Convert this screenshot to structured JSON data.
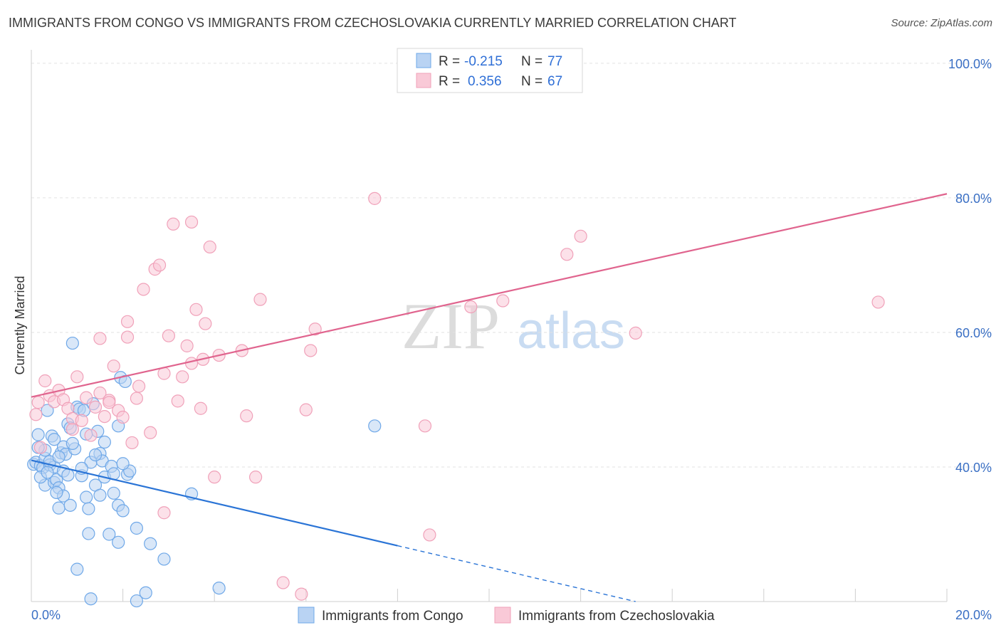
{
  "chart_data": {
    "type": "scatter",
    "title": "IMMIGRANTS FROM CONGO VS IMMIGRANTS FROM CZECHOSLOVAKIA CURRENTLY MARRIED CORRELATION CHART",
    "source": "Source: ZipAtlas.com",
    "ylabel": "Currently Married",
    "xlabel": "",
    "xlim": [
      0,
      20
    ],
    "ylim": [
      20,
      102
    ],
    "x_tick_labels": [
      "0.0%",
      "20.0%"
    ],
    "y_ticks": [
      40,
      60,
      80,
      100
    ],
    "y_tick_labels": [
      "40.0%",
      "60.0%",
      "80.0%",
      "100.0%"
    ],
    "grid": true,
    "watermark": {
      "zip": "ZIP",
      "atlas": "atlas"
    },
    "legend": {
      "position": "top-center",
      "rows": [
        {
          "r_label": "R =",
          "r_value": "-0.215",
          "n_label": "N =",
          "n_value": "77"
        },
        {
          "r_label": "R =",
          "r_value": "0.356",
          "n_label": "N =",
          "n_value": "67"
        }
      ]
    },
    "series": [
      {
        "name": "Immigrants from Congo",
        "color": "#6fa8e8",
        "fill": "#b9d3f3",
        "line_color": "#2a74d6",
        "trend": {
          "x0": 0.0,
          "y0": 41.0,
          "x1": 8.0,
          "y1": 28.3,
          "dash_to_x": 13.2,
          "dash_to_y": 20.0
        },
        "points": [
          [
            0.05,
            40.4
          ],
          [
            0.1,
            40.7
          ],
          [
            0.15,
            44.8
          ],
          [
            0.2,
            40.2
          ],
          [
            0.25,
            39.9
          ],
          [
            0.3,
            37.3
          ],
          [
            0.3,
            41.3
          ],
          [
            0.35,
            48.4
          ],
          [
            0.4,
            40.3
          ],
          [
            0.45,
            44.6
          ],
          [
            0.5,
            40.0
          ],
          [
            0.5,
            37.7
          ],
          [
            0.55,
            38.1
          ],
          [
            0.6,
            36.9
          ],
          [
            0.6,
            33.9
          ],
          [
            0.65,
            42.1
          ],
          [
            0.7,
            43.0
          ],
          [
            0.7,
            35.7
          ],
          [
            0.75,
            41.9
          ],
          [
            0.8,
            46.4
          ],
          [
            0.85,
            45.8
          ],
          [
            0.85,
            34.3
          ],
          [
            0.9,
            58.4
          ],
          [
            0.95,
            42.7
          ],
          [
            1.0,
            48.9
          ],
          [
            1.05,
            48.6
          ],
          [
            1.1,
            38.7
          ],
          [
            1.15,
            48.4
          ],
          [
            1.2,
            35.5
          ],
          [
            1.25,
            33.8
          ],
          [
            1.25,
            30.1
          ],
          [
            1.3,
            40.7
          ],
          [
            1.35,
            49.4
          ],
          [
            1.4,
            37.3
          ],
          [
            1.45,
            45.3
          ],
          [
            1.5,
            42.0
          ],
          [
            1.5,
            35.8
          ],
          [
            1.55,
            40.9
          ],
          [
            1.6,
            43.7
          ],
          [
            1.7,
            30.0
          ],
          [
            1.75,
            40.1
          ],
          [
            1.8,
            36.1
          ],
          [
            1.9,
            46.1
          ],
          [
            1.9,
            34.3
          ],
          [
            1.95,
            53.3
          ],
          [
            2.0,
            33.5
          ],
          [
            2.05,
            52.7
          ],
          [
            2.1,
            38.9
          ],
          [
            2.15,
            39.4
          ],
          [
            2.3,
            30.9
          ],
          [
            2.3,
            20.1
          ],
          [
            2.5,
            21.3
          ],
          [
            2.6,
            28.6
          ],
          [
            2.9,
            26.3
          ],
          [
            3.5,
            36.0
          ],
          [
            4.1,
            22.0
          ],
          [
            7.5,
            46.1
          ],
          [
            1.0,
            24.8
          ],
          [
            1.3,
            20.4
          ],
          [
            1.9,
            28.8
          ],
          [
            0.2,
            38.5
          ],
          [
            0.4,
            40.8
          ],
          [
            0.6,
            41.5
          ],
          [
            0.9,
            43.5
          ],
          [
            1.1,
            39.8
          ],
          [
            0.3,
            42.5
          ],
          [
            0.5,
            44.1
          ],
          [
            0.7,
            39.4
          ],
          [
            1.2,
            44.9
          ],
          [
            1.6,
            38.5
          ],
          [
            0.15,
            42.9
          ],
          [
            0.55,
            36.2
          ],
          [
            0.8,
            38.8
          ],
          [
            1.4,
            41.8
          ],
          [
            1.8,
            39.0
          ],
          [
            2.0,
            40.5
          ],
          [
            0.35,
            39.2
          ]
        ]
      },
      {
        "name": "Immigrants from Czechoslovakia",
        "color": "#f0a1b9",
        "fill": "#f9c9d7",
        "line_color": "#e0648e",
        "trend": {
          "x0": 0.0,
          "y0": 50.4,
          "x1": 20.0,
          "y1": 80.6
        },
        "points": [
          [
            0.1,
            47.8
          ],
          [
            0.15,
            49.6
          ],
          [
            0.2,
            42.9
          ],
          [
            0.3,
            52.8
          ],
          [
            0.4,
            50.6
          ],
          [
            0.5,
            49.7
          ],
          [
            0.6,
            51.4
          ],
          [
            0.7,
            50.0
          ],
          [
            0.8,
            48.7
          ],
          [
            0.9,
            47.2
          ],
          [
            0.9,
            45.6
          ],
          [
            1.0,
            53.4
          ],
          [
            1.1,
            46.9
          ],
          [
            1.2,
            50.3
          ],
          [
            1.3,
            44.7
          ],
          [
            1.4,
            48.9
          ],
          [
            1.5,
            59.1
          ],
          [
            1.5,
            51.0
          ],
          [
            1.6,
            47.5
          ],
          [
            1.7,
            49.9
          ],
          [
            1.7,
            49.6
          ],
          [
            1.8,
            55.0
          ],
          [
            1.9,
            48.4
          ],
          [
            2.0,
            47.4
          ],
          [
            2.1,
            59.3
          ],
          [
            2.1,
            61.6
          ],
          [
            2.2,
            43.6
          ],
          [
            2.3,
            50.2
          ],
          [
            2.35,
            52.0
          ],
          [
            2.45,
            66.4
          ],
          [
            2.6,
            45.1
          ],
          [
            2.7,
            69.4
          ],
          [
            2.8,
            70.0
          ],
          [
            2.9,
            33.2
          ],
          [
            2.9,
            53.9
          ],
          [
            3.0,
            59.5
          ],
          [
            3.1,
            76.1
          ],
          [
            3.2,
            49.8
          ],
          [
            3.3,
            53.4
          ],
          [
            3.4,
            58.0
          ],
          [
            3.5,
            55.4
          ],
          [
            3.5,
            76.4
          ],
          [
            3.6,
            63.4
          ],
          [
            3.7,
            48.7
          ],
          [
            3.75,
            56.0
          ],
          [
            3.8,
            61.3
          ],
          [
            3.9,
            72.7
          ],
          [
            4.0,
            38.5
          ],
          [
            4.1,
            56.6
          ],
          [
            4.6,
            57.3
          ],
          [
            4.7,
            47.6
          ],
          [
            4.9,
            38.5
          ],
          [
            5.0,
            64.9
          ],
          [
            5.5,
            22.8
          ],
          [
            6.0,
            48.5
          ],
          [
            6.1,
            57.3
          ],
          [
            6.2,
            60.5
          ],
          [
            5.9,
            21.1
          ],
          [
            7.5,
            79.9
          ],
          [
            8.6,
            46.1
          ],
          [
            8.7,
            29.9
          ],
          [
            9.6,
            63.8
          ],
          [
            10.3,
            64.7
          ],
          [
            11.7,
            71.6
          ],
          [
            12.0,
            74.3
          ],
          [
            13.2,
            59.9
          ],
          [
            18.5,
            64.5
          ]
        ]
      }
    ]
  }
}
